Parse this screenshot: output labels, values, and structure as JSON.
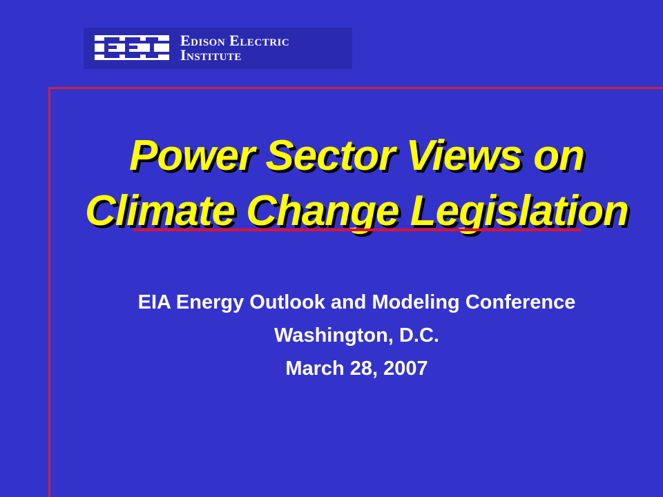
{
  "logo": {
    "mark_text": "EEI",
    "name_line1": "Edison Electric",
    "name_line2": "Institute"
  },
  "slide": {
    "title_line1": "Power Sector Views on",
    "title_line2": "Climate Change Legislation",
    "subtitle_line1": "EIA Energy Outlook and Modeling Conference",
    "subtitle_line2": "Washington, D.C.",
    "subtitle_line3": "March 28, 2007"
  },
  "colors": {
    "background": "#3333cc",
    "title": "#ffff00",
    "accent_line": "#cc2244",
    "text": "#ffffff"
  }
}
